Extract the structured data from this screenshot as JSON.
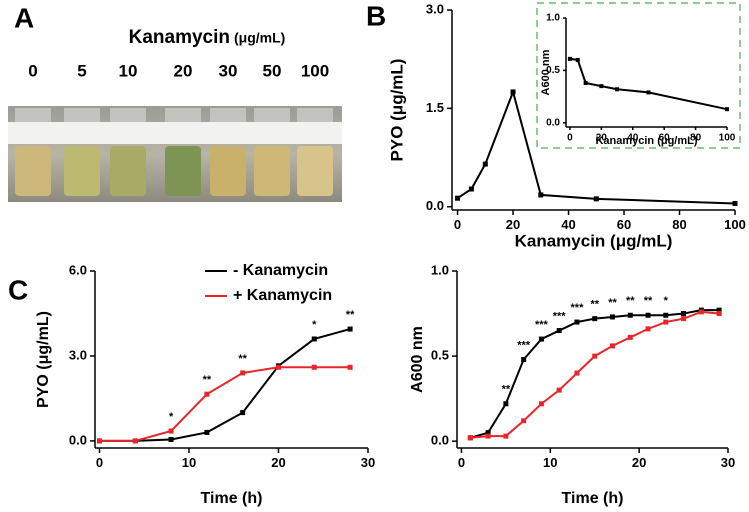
{
  "panel_labels": [
    "A",
    "B",
    "C"
  ],
  "photo": {
    "title": "Kanamycin",
    "unit": "(μg/mL)",
    "labels": [
      "0",
      "5",
      "10",
      "20",
      "30",
      "50",
      "100"
    ]
  },
  "chart_data": [
    {
      "type": "line",
      "x": [
        0,
        5,
        10,
        20,
        30,
        50,
        100
      ],
      "values": [
        0.13,
        0.27,
        0.65,
        1.75,
        0.18,
        0.12,
        0.05
      ],
      "color": "#000000",
      "xlabel": "Kanamycin (μg/mL)",
      "ylabel": "PYO (μg/mL)",
      "xlim": [
        -2,
        100
      ],
      "ylim": [
        -0.05,
        3
      ],
      "xticks": [
        0,
        20,
        40,
        60,
        80,
        100
      ],
      "yticks": [
        {
          "value": 0,
          "label": "0.0"
        },
        1.5,
        {
          "value": 3,
          "label": "3.0"
        }
      ]
    },
    {
      "type": "line",
      "x": [
        0,
        5,
        10,
        20,
        30,
        50,
        100
      ],
      "values": [
        0.61,
        0.6,
        0.38,
        0.35,
        0.32,
        0.29,
        0.13
      ],
      "color": "#000000",
      "xlabel": "Kanamycin (μg/mL)",
      "ylabel": "A600 nm",
      "xlim": [
        -2.5,
        100
      ],
      "ylim": [
        -0.04,
        1
      ],
      "xticks": [
        0,
        20,
        40,
        60,
        80,
        100
      ],
      "yticks": [
        {
          "value": 0,
          "label": "0.0"
        },
        0.5,
        {
          "value": 1,
          "label": "1.0"
        }
      ]
    },
    {
      "type": "line",
      "x": [
        0,
        4,
        8,
        12,
        16,
        20,
        24,
        28
      ],
      "series": [
        {
          "name": "- Kanamycin",
          "color": "#000000",
          "values": [
            0,
            0,
            0.05,
            0.3,
            1.0,
            2.65,
            3.6,
            3.95
          ]
        },
        {
          "name": "+ Kanamycin",
          "color": "#e8262a",
          "values": [
            0,
            0,
            0.35,
            1.65,
            2.4,
            2.6,
            2.6,
            2.6
          ]
        }
      ],
      "annotations": [
        {
          "x": 8,
          "text": "*"
        },
        {
          "x": 12,
          "text": "**"
        },
        {
          "x": 16,
          "text": "**"
        },
        {
          "x": 24,
          "text": "*"
        },
        {
          "x": 28,
          "text": "**"
        }
      ],
      "legend": "top-left",
      "xlabel": "Time (h)",
      "ylabel": "PYO (μg/mL)",
      "xlim": [
        -0.5,
        30
      ],
      "ylim": [
        -0.25,
        6
      ],
      "xticks": [
        0,
        10,
        20,
        30
      ],
      "yticks": [
        {
          "value": 0,
          "label": "0.0"
        },
        {
          "value": 3,
          "label": "3.0"
        },
        {
          "value": 6,
          "label": "6.0"
        }
      ]
    },
    {
      "type": "line",
      "x": [
        1,
        3,
        5,
        7,
        9,
        11,
        13,
        15,
        17,
        19,
        21,
        23,
        25,
        27,
        29
      ],
      "series": [
        {
          "name": "- Kanamycin",
          "color": "#000000",
          "values": [
            0.02,
            0.05,
            0.22,
            0.48,
            0.6,
            0.65,
            0.7,
            0.72,
            0.73,
            0.74,
            0.74,
            0.74,
            0.75,
            0.77,
            0.77
          ]
        },
        {
          "name": "+ Kanamycin",
          "color": "#e8262a",
          "values": [
            0.02,
            0.03,
            0.03,
            0.12,
            0.22,
            0.3,
            0.4,
            0.5,
            0.56,
            0.61,
            0.66,
            0.7,
            0.72,
            0.76,
            0.75
          ]
        }
      ],
      "annotations": [
        {
          "x": 5,
          "text": "**"
        },
        {
          "x": 7,
          "text": "***"
        },
        {
          "x": 9,
          "text": "***"
        },
        {
          "x": 11,
          "text": "***"
        },
        {
          "x": 13,
          "text": "***"
        },
        {
          "x": 15,
          "text": "**"
        },
        {
          "x": 17,
          "text": "**"
        },
        {
          "x": 19,
          "text": "**"
        },
        {
          "x": 21,
          "text": "**"
        },
        {
          "x": 23,
          "text": "*"
        }
      ],
      "xlabel": "Time (h)",
      "ylabel": "A600 nm",
      "xlim": [
        -0.5,
        30
      ],
      "ylim": [
        -0.04,
        1
      ],
      "xticks": [
        0,
        10,
        20,
        30
      ],
      "yticks": [
        {
          "value": 0,
          "label": "0.0"
        },
        0.5,
        {
          "value": 1,
          "label": "1.0"
        }
      ]
    }
  ]
}
